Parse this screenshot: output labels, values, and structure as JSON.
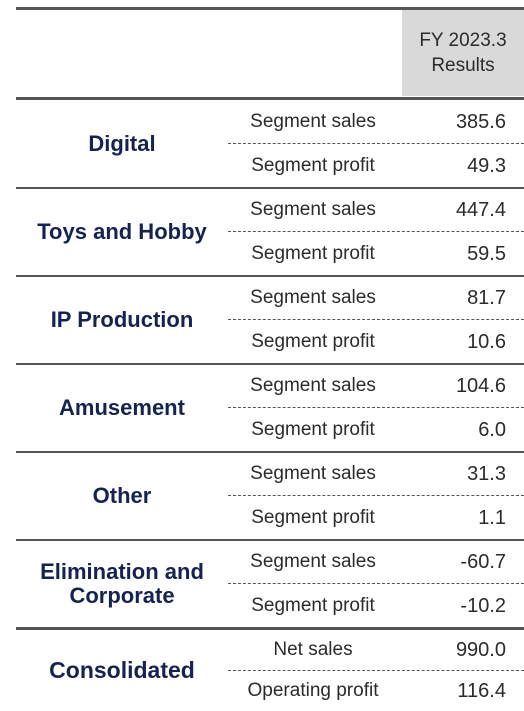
{
  "header": {
    "col_title_line1": "FY 2023.3",
    "col_title_line2": "Results"
  },
  "segments": [
    {
      "name": "Digital",
      "rows": [
        {
          "label": "Segment sales",
          "value": "385.6"
        },
        {
          "label": "Segment profit",
          "value": "49.3"
        }
      ]
    },
    {
      "name": "Toys and Hobby",
      "rows": [
        {
          "label": "Segment sales",
          "value": "447.4"
        },
        {
          "label": "Segment profit",
          "value": "59.5"
        }
      ]
    },
    {
      "name": "IP Production",
      "rows": [
        {
          "label": "Segment sales",
          "value": "81.7"
        },
        {
          "label": "Segment profit",
          "value": "10.6"
        }
      ]
    },
    {
      "name": "Amusement",
      "rows": [
        {
          "label": "Segment sales",
          "value": "104.6"
        },
        {
          "label": "Segment profit",
          "value": "6.0"
        }
      ]
    },
    {
      "name": "Other",
      "rows": [
        {
          "label": "Segment sales",
          "value": "31.3"
        },
        {
          "label": "Segment profit",
          "value": "1.1"
        }
      ]
    },
    {
      "name": "Elimination and Corporate",
      "rows": [
        {
          "label": "Segment sales",
          "value": "-60.7"
        },
        {
          "label": "Segment profit",
          "value": "-10.2"
        }
      ]
    },
    {
      "name": "Consolidated",
      "rows": [
        {
          "label": "Net sales",
          "value": "990.0"
        },
        {
          "label": "Operating profit",
          "value": "116.4"
        }
      ]
    }
  ]
}
